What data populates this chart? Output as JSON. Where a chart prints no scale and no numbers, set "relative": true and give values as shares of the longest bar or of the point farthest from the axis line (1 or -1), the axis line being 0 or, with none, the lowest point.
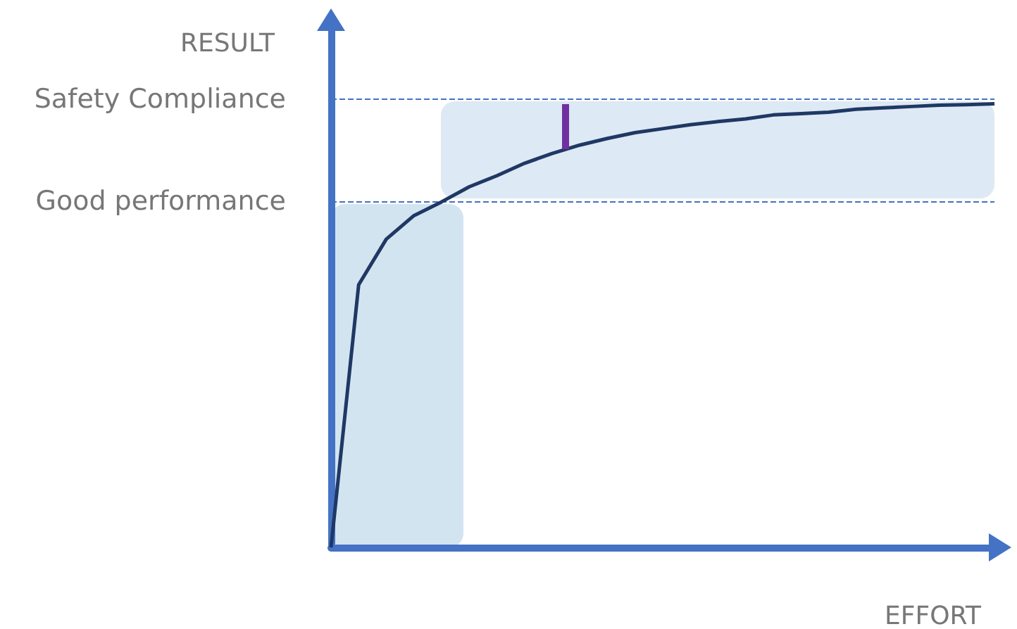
{
  "chart_data": {
    "type": "line",
    "relative": true,
    "ylabel": "RESULT",
    "xlabel": "EFFORT",
    "grid": false,
    "marker": "none",
    "line_style": "solid",
    "categories": [
      null,
      null,
      null,
      null,
      null,
      null,
      null,
      null,
      null,
      null,
      null,
      null,
      null,
      null,
      null,
      null,
      null,
      null,
      null,
      null,
      null,
      null,
      null,
      null,
      null
    ],
    "series": [
      {
        "color": "#1f3864",
        "values": [
          0,
          0.592,
          0.695,
          0.748,
          0.779,
          0.813,
          0.838,
          0.866,
          0.888,
          0.907,
          0.922,
          0.935,
          0.944,
          0.953,
          0.96,
          0.966,
          0.975,
          0.978,
          0.981,
          0.988,
          0.991,
          0.994,
          0.997,
          0.998,
          1
        ]
      }
    ],
    "ref_lines": [
      {
        "axis": "y",
        "value": 1.006,
        "label": "Safety Compliance",
        "color": "#4472c4",
        "line_style": "dashed"
      },
      {
        "axis": "y",
        "value": 0.779,
        "label": "Good performance",
        "color": "#4472c4",
        "line_style": "dashed"
      }
    ]
  }
}
